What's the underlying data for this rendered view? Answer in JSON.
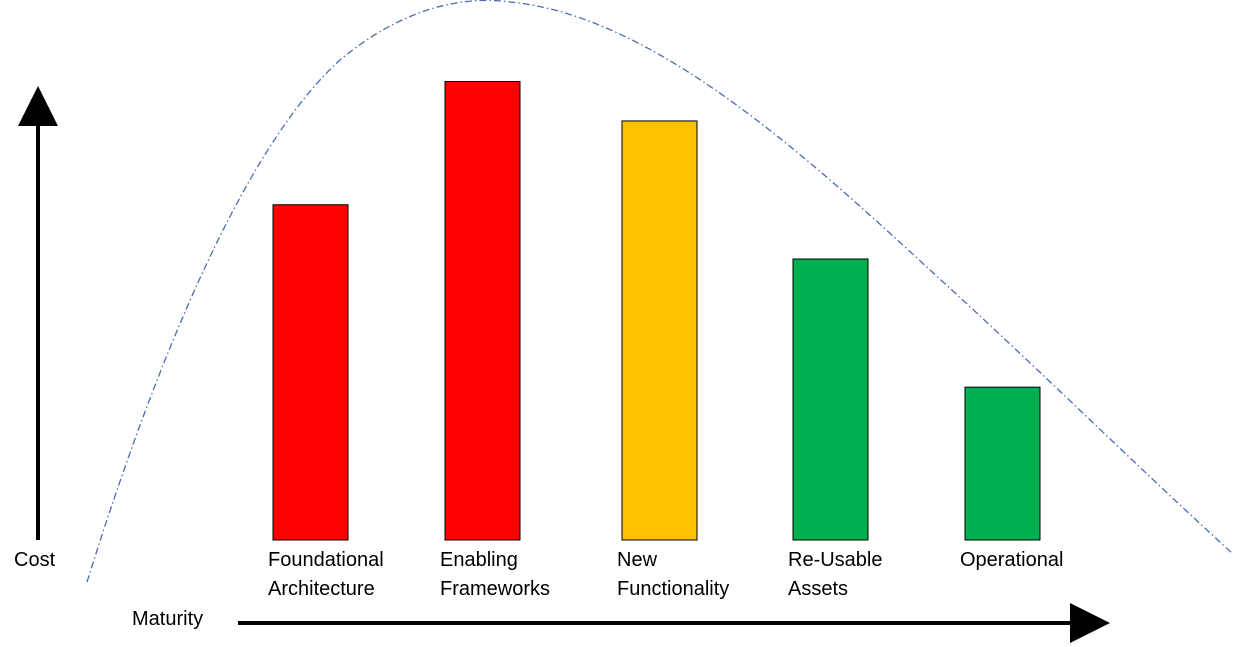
{
  "chart_data": {
    "type": "bar",
    "title": "",
    "ylabel": "Cost",
    "xlabel": "Maturity",
    "categories": [
      [
        "Foundational",
        "Architecture"
      ],
      [
        "Enabling",
        "Frameworks"
      ],
      [
        "New",
        "Functionality"
      ],
      [
        "Re-Usable",
        "Assets"
      ],
      [
        "Operational"
      ]
    ],
    "values": [
      68,
      93,
      85,
      57,
      31
    ],
    "ylim": [
      0,
      100
    ],
    "bar_colors": [
      "#ff0000",
      "#ff0000",
      "#ffc000",
      "#00b050",
      "#00b050"
    ],
    "trend_curve": {
      "style": "dash-dot",
      "color": "#4a6cb0",
      "shape": "rise-then-fall",
      "peak_between": [
        "Foundational Architecture",
        "Enabling Frameworks"
      ]
    },
    "grid": false,
    "legend": "none"
  }
}
